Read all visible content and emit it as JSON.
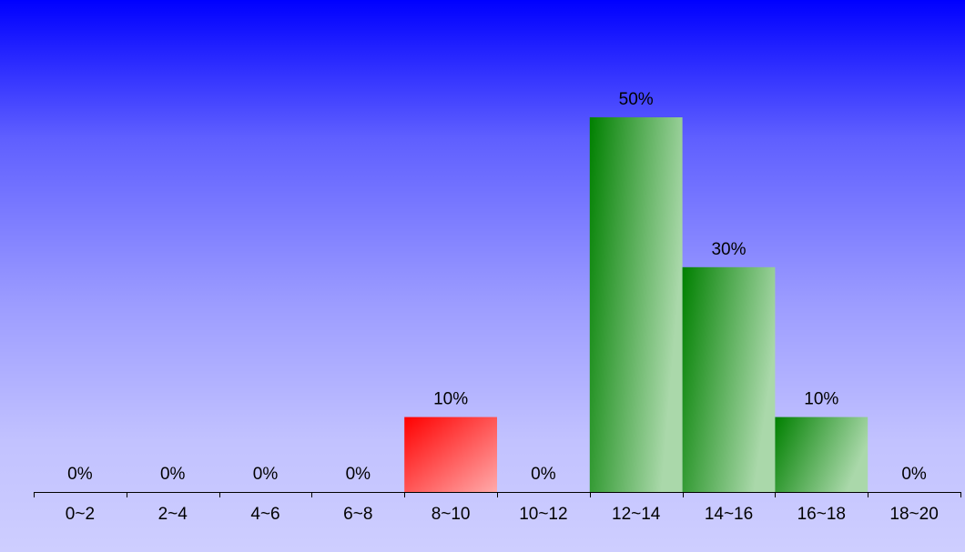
{
  "chart_data": {
    "type": "bar",
    "categories": [
      "0~2",
      "2~4",
      "4~6",
      "6~8",
      "8~10",
      "10~12",
      "12~14",
      "14~16",
      "16~18",
      "18~20"
    ],
    "values": [
      0,
      0,
      0,
      0,
      10,
      0,
      50,
      30,
      10,
      0
    ],
    "value_labels": [
      "0%",
      "0%",
      "0%",
      "0%",
      "10%",
      "0%",
      "50%",
      "30%",
      "10%",
      "0%"
    ],
    "unit": "%",
    "ylim": [
      0,
      50
    ],
    "grid": false,
    "colors": {
      "highlight_start": "#ff0000",
      "highlight_end": "#ffaaaa",
      "normal_start": "#008000",
      "normal_end": "#aad8aa"
    },
    "highlight_index": 4
  }
}
